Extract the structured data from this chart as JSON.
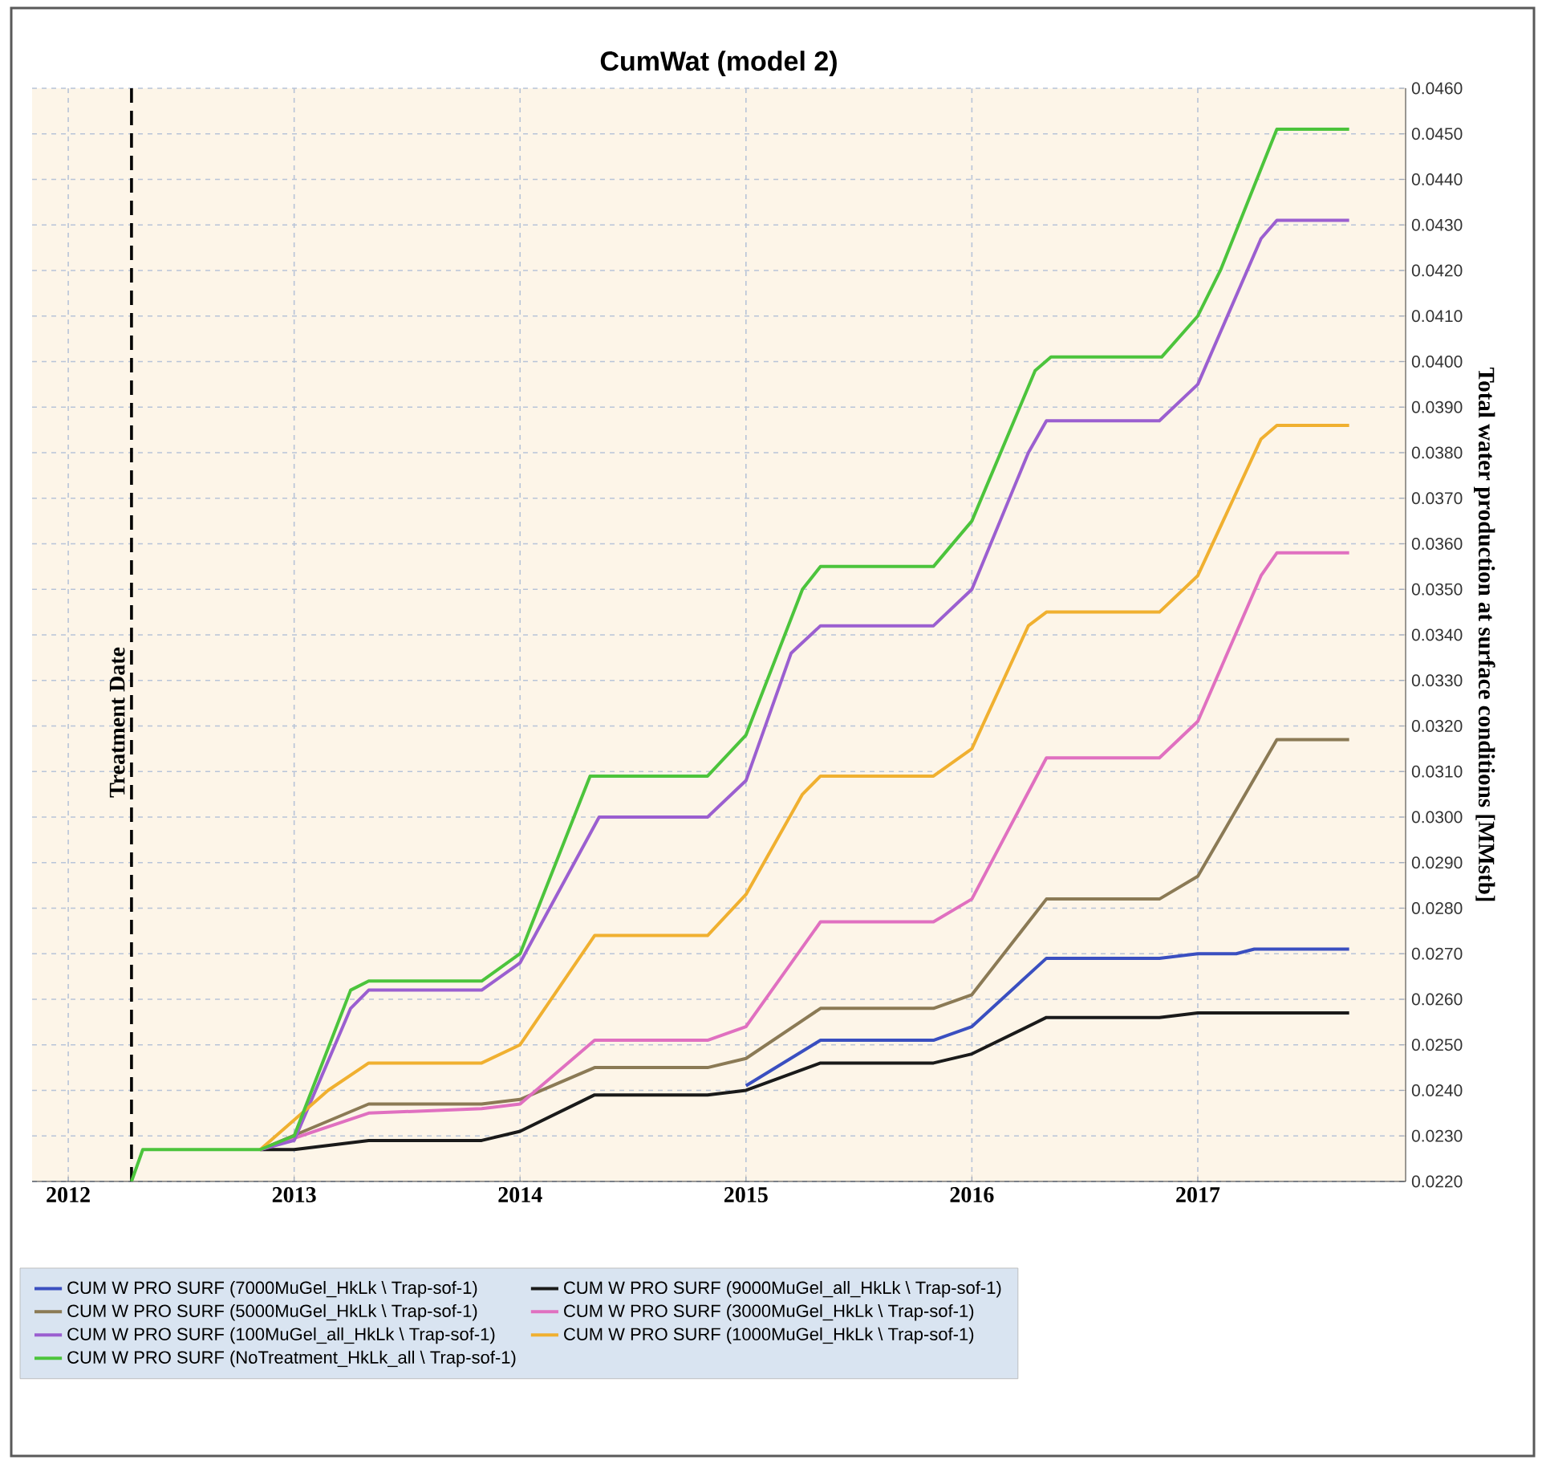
{
  "chart_data": {
    "type": "line",
    "title": "CumWat (model 2)",
    "ylabel": "Total water production at surface conditions [MMstb]",
    "xlim": [
      2011.84,
      2017.92
    ],
    "xticks": [
      2012,
      2013,
      2014,
      2015,
      2016,
      2017
    ],
    "ylim": [
      0.022,
      0.046
    ],
    "yticks": [
      {
        "value": 0.022,
        "label": "0.0220"
      },
      {
        "value": 0.023,
        "label": "0.0230"
      },
      {
        "value": 0.024,
        "label": "0.0240"
      },
      {
        "value": 0.025,
        "label": "0.0250"
      },
      {
        "value": 0.026,
        "label": "0.0260"
      },
      {
        "value": 0.027,
        "label": "0.0270"
      },
      {
        "value": 0.028,
        "label": "0.0280"
      },
      {
        "value": 0.029,
        "label": "0.0290"
      },
      {
        "value": 0.03,
        "label": "0.0300"
      },
      {
        "value": 0.031,
        "label": "0.0310"
      },
      {
        "value": 0.032,
        "label": "0.0320"
      },
      {
        "value": 0.033,
        "label": "0.0330"
      },
      {
        "value": 0.034,
        "label": "0.0340"
      },
      {
        "value": 0.035,
        "label": "0.0350"
      },
      {
        "value": 0.036,
        "label": "0.0360"
      },
      {
        "value": 0.037,
        "label": "0.0370"
      },
      {
        "value": 0.038,
        "label": "0.0380"
      },
      {
        "value": 0.039,
        "label": "0.0390"
      },
      {
        "value": 0.04,
        "label": "0.0400"
      },
      {
        "value": 0.041,
        "label": "0.0410"
      },
      {
        "value": 0.042,
        "label": "0.0420"
      },
      {
        "value": 0.043,
        "label": "0.0430"
      },
      {
        "value": 0.044,
        "label": "0.0440"
      },
      {
        "value": 0.045,
        "label": "0.0450"
      },
      {
        "value": 0.046,
        "label": "0.0460"
      }
    ],
    "grid": true,
    "legend": "bottom",
    "line_style": "solid",
    "ref_lines": [
      {
        "axis": "x",
        "value": 2012.28,
        "label": "Treatment Date",
        "color": "#000000",
        "line_style": "dashed"
      }
    ],
    "series": [
      {
        "name": "CUM W PRO SURF (7000MuGel_HkLk \\ Trap-sof-1)",
        "color": "#3a4fc0",
        "x": [
          2015.0,
          2015.33,
          2015.83,
          2016.0,
          2016.33,
          2016.83,
          2017.0,
          2017.17,
          2017.25,
          2017.67
        ],
        "values": [
          0.0241,
          0.0251,
          0.0251,
          0.0254,
          0.0269,
          0.0269,
          0.027,
          0.027,
          0.0271,
          0.0271
        ]
      },
      {
        "name": "CUM W PRO SURF (9000MuGel_all_HkLk \\ Trap-sof-1)",
        "color": "#1a1a1a",
        "x": [
          2012.85,
          2013.0,
          2013.33,
          2013.83,
          2014.0,
          2014.33,
          2014.83,
          2015.0,
          2015.33,
          2015.83,
          2016.0,
          2016.33,
          2016.83,
          2017.0,
          2017.67
        ],
        "values": [
          0.0227,
          0.0227,
          0.0229,
          0.0229,
          0.0231,
          0.0239,
          0.0239,
          0.024,
          0.0246,
          0.0246,
          0.0248,
          0.0256,
          0.0256,
          0.0257,
          0.0257
        ]
      },
      {
        "name": "CUM W PRO SURF (5000MuGel_HkLk \\ Trap-sof-1)",
        "color": "#8b7a55",
        "x": [
          2012.85,
          2013.33,
          2013.83,
          2014.0,
          2014.33,
          2014.83,
          2015.0,
          2015.33,
          2015.83,
          2016.0,
          2016.33,
          2016.83,
          2017.0,
          2017.35,
          2017.67
        ],
        "values": [
          0.0227,
          0.0237,
          0.0237,
          0.0238,
          0.0245,
          0.0245,
          0.0247,
          0.0258,
          0.0258,
          0.0261,
          0.0282,
          0.0282,
          0.0287,
          0.0317,
          0.0317
        ]
      },
      {
        "name": "CUM W PRO SURF (3000MuGel_HkLk \\ Trap-sof-1)",
        "color": "#e070c0",
        "x": [
          2012.85,
          2013.33,
          2013.83,
          2014.0,
          2014.33,
          2014.83,
          2015.0,
          2015.33,
          2015.83,
          2016.0,
          2016.33,
          2016.83,
          2017.0,
          2017.28,
          2017.35,
          2017.67
        ],
        "values": [
          0.0227,
          0.0235,
          0.0236,
          0.0237,
          0.0251,
          0.0251,
          0.0254,
          0.0277,
          0.0277,
          0.0282,
          0.0313,
          0.0313,
          0.0321,
          0.0353,
          0.0358,
          0.0358
        ]
      },
      {
        "name": "CUM W PRO SURF (100MuGel_all_HkLk \\ Trap-sof-1)",
        "color": "#9b5fd0",
        "x": [
          2012.85,
          2013.0,
          2013.25,
          2013.33,
          2013.83,
          2014.0,
          2014.35,
          2014.83,
          2015.0,
          2015.2,
          2015.33,
          2015.83,
          2016.0,
          2016.25,
          2016.33,
          2016.83,
          2017.0,
          2017.28,
          2017.35,
          2017.67
        ],
        "values": [
          0.0227,
          0.0229,
          0.0258,
          0.0262,
          0.0262,
          0.0268,
          0.03,
          0.03,
          0.0308,
          0.0336,
          0.0342,
          0.0342,
          0.035,
          0.038,
          0.0387,
          0.0387,
          0.0395,
          0.0427,
          0.0431,
          0.0431
        ]
      },
      {
        "name": "CUM W PRO SURF (1000MuGel_HkLk \\ Trap-sof-1)",
        "color": "#f0b030",
        "x": [
          2012.85,
          2013.15,
          2013.33,
          2013.83,
          2014.0,
          2014.33,
          2014.83,
          2015.0,
          2015.25,
          2015.33,
          2015.83,
          2016.0,
          2016.25,
          2016.33,
          2016.83,
          2017.0,
          2017.28,
          2017.35,
          2017.67
        ],
        "values": [
          0.0227,
          0.024,
          0.0246,
          0.0246,
          0.025,
          0.0274,
          0.0274,
          0.0283,
          0.0305,
          0.0309,
          0.0309,
          0.0315,
          0.0342,
          0.0345,
          0.0345,
          0.0353,
          0.0383,
          0.0386,
          0.0386
        ]
      },
      {
        "name": "CUM W PRO SURF (NoTreatment_HkLk_all \\ Trap-sof-1)",
        "color": "#4cc43c",
        "x": [
          2012.28,
          2012.33,
          2012.85,
          2013.0,
          2013.25,
          2013.33,
          2013.83,
          2014.0,
          2014.31,
          2014.83,
          2015.0,
          2015.25,
          2015.33,
          2015.83,
          2016.0,
          2016.28,
          2016.35,
          2016.84,
          2017.0,
          2017.1,
          2017.35,
          2017.67
        ],
        "values": [
          0.022,
          0.0227,
          0.0227,
          0.023,
          0.0262,
          0.0264,
          0.0264,
          0.027,
          0.0309,
          0.0309,
          0.0318,
          0.035,
          0.0355,
          0.0355,
          0.0365,
          0.0398,
          0.0401,
          0.0401,
          0.041,
          0.042,
          0.0451,
          0.0451
        ]
      }
    ]
  }
}
